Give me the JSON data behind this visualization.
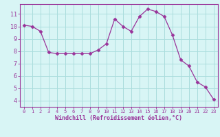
{
  "x": [
    0,
    1,
    2,
    3,
    4,
    5,
    6,
    7,
    8,
    9,
    10,
    11,
    12,
    13,
    14,
    15,
    16,
    17,
    18,
    19,
    20,
    21,
    22,
    23
  ],
  "y": [
    10.1,
    10.0,
    9.6,
    7.9,
    7.8,
    7.8,
    7.8,
    7.8,
    7.8,
    8.1,
    8.6,
    10.6,
    10.0,
    9.6,
    10.8,
    11.4,
    11.2,
    10.8,
    9.3,
    7.3,
    6.8,
    5.5,
    5.1,
    4.1
  ],
  "line_color": "#993399",
  "marker": "D",
  "marker_size": 2.5,
  "bg_color": "#d8f5f5",
  "grid_color": "#aadddd",
  "xlabel": "Windchill (Refroidissement éolien,°C)",
  "xlabel_color": "#993399",
  "tick_color": "#993399",
  "ylim": [
    3.5,
    11.8
  ],
  "xlim": [
    -0.5,
    23.5
  ],
  "yticks": [
    4,
    5,
    6,
    7,
    8,
    9,
    10,
    11
  ],
  "xticks": [
    0,
    1,
    2,
    3,
    4,
    5,
    6,
    7,
    8,
    9,
    10,
    11,
    12,
    13,
    14,
    15,
    16,
    17,
    18,
    19,
    20,
    21,
    22,
    23
  ],
  "spine_color": "#993399",
  "figsize": [
    3.2,
    2.0
  ],
  "dpi": 100
}
